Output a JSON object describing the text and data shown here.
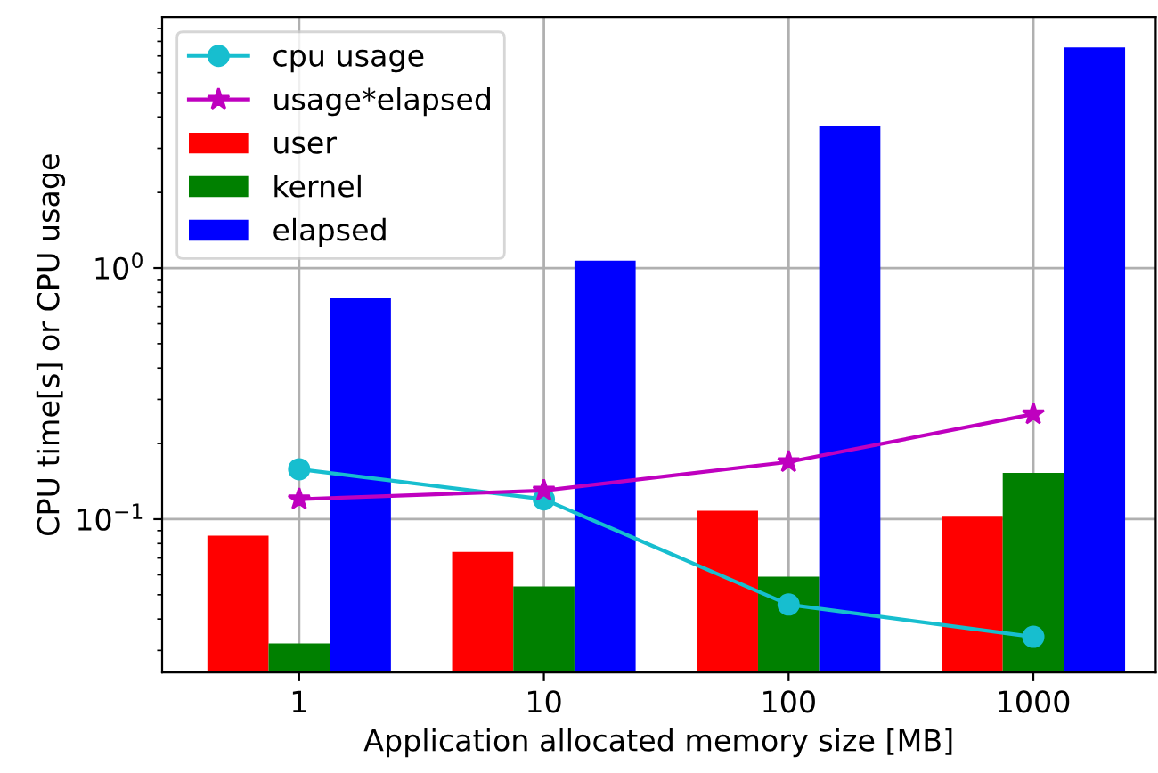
{
  "chart_data": {
    "type": "bar",
    "xlabel": "Application allocated memory size [MB]",
    "ylabel": "CPU time[s] or CPU usage",
    "categories": [
      "1",
      "10",
      "100",
      "1000"
    ],
    "series": [
      {
        "name": "cpu usage",
        "type": "line",
        "color": "#17becf",
        "marker": "circle",
        "values": [
          0.158,
          0.12,
          0.0457,
          0.034
        ]
      },
      {
        "name": "usage*elapsed",
        "type": "line",
        "color": "#bf00bf",
        "marker": "star",
        "values": [
          0.12,
          0.13,
          0.169,
          0.262
        ]
      },
      {
        "name": "user",
        "color": "#ff0000",
        "values": [
          0.086,
          0.074,
          0.108,
          0.103
        ]
      },
      {
        "name": "kernel",
        "color": "#008000",
        "values": [
          0.032,
          0.054,
          0.059,
          0.153
        ]
      },
      {
        "name": "elapsed",
        "color": "#0000ff",
        "values": [
          0.757,
          1.07,
          3.69,
          7.57
        ]
      }
    ],
    "log": "y",
    "ylim": [
      0.0245,
      10
    ],
    "yticks": [
      {
        "value": 0.1,
        "label": "10$^{−1}$"
      },
      {
        "value": 1,
        "label": "10$^{0}$"
      }
    ],
    "grid": true,
    "legend": "top left"
  }
}
